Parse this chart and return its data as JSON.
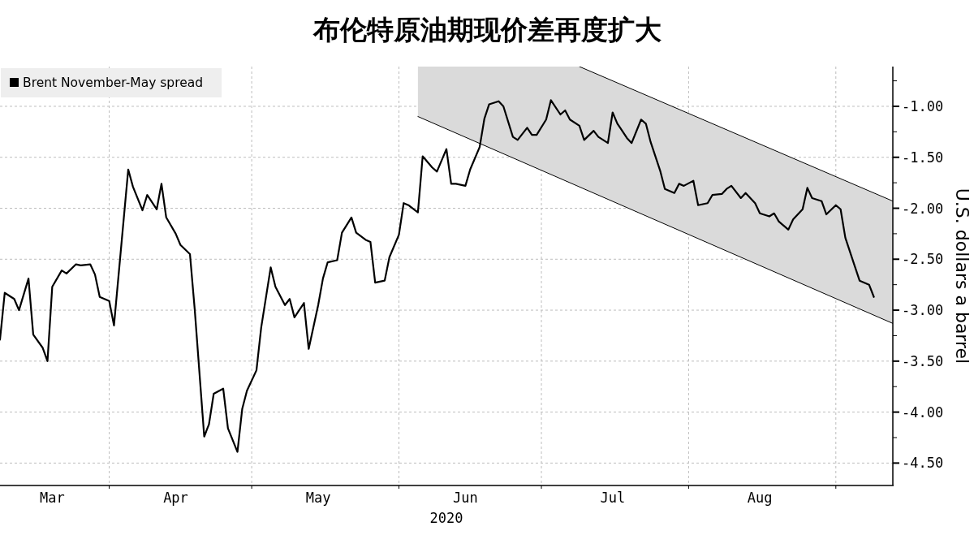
{
  "chart_data": {
    "type": "line",
    "title": "布伦特原油期现价差再度扩大",
    "xlabel": "2020",
    "ylabel": "U.S. dollars a barrel",
    "xlim": [
      "2020-03-09",
      "2020-09-13"
    ],
    "xticks": [
      {
        "value": "2020-04-01",
        "label": null
      },
      {
        "value": "2020-05-01",
        "label": null
      },
      {
        "value": "2020-06-01",
        "label": null
      },
      {
        "value": "2020-07-01",
        "label": null
      },
      {
        "value": "2020-08-01",
        "label": null
      },
      {
        "value": "2020-09-01",
        "label": null
      },
      {
        "value": "2020-03-20",
        "label": "Mar"
      },
      {
        "value": "2020-04-15",
        "label": "Apr"
      },
      {
        "value": "2020-05-15",
        "label": "May"
      },
      {
        "value": "2020-06-15",
        "label": "Jun"
      },
      {
        "value": "2020-07-16",
        "label": "Jul"
      },
      {
        "value": "2020-08-16",
        "label": "Aug"
      }
    ],
    "ylim": [
      -4.72,
      -0.61
    ],
    "yticks": [
      {
        "value": -1,
        "label": "-1.00"
      },
      {
        "value": -1.5,
        "label": "-1.50"
      },
      {
        "value": -2,
        "label": "-2.00"
      },
      {
        "value": -2.5,
        "label": "-2.50"
      },
      {
        "value": -3,
        "label": "-3.00"
      },
      {
        "value": -3.5,
        "label": "-3.50"
      },
      {
        "value": -4,
        "label": "-4.00"
      },
      {
        "value": -4.5,
        "label": "-4.50"
      },
      {
        "value": -0.75,
        "label": null
      },
      {
        "value": -1.25,
        "label": null
      },
      {
        "value": -1.75,
        "label": null
      },
      {
        "value": -2.25,
        "label": null
      },
      {
        "value": -2.75,
        "label": null
      },
      {
        "value": -3.25,
        "label": null
      },
      {
        "value": -3.75,
        "label": null
      },
      {
        "value": -4.25,
        "label": null
      }
    ],
    "grid": true,
    "legend": "top left",
    "series": [
      {
        "color": "#000000",
        "x": [
          "2020-07-09",
          "2020-09-13"
        ],
        "values": [
          -0.61,
          -1.93
        ]
      },
      {
        "color": "#000000",
        "x": [
          "2020-06-05",
          "2020-09-13"
        ],
        "values": [
          -1.1,
          -3.13
        ]
      },
      {
        "name": "Brent November-May spread",
        "color": "#000000",
        "x": [
          "2020-03-09",
          "2020-03-10",
          "2020-03-12",
          "2020-03-13",
          "2020-03-15",
          "2020-03-16",
          "2020-03-18",
          "2020-03-19",
          "2020-03-20",
          "2020-03-22",
          "2020-03-23",
          "2020-03-25",
          "2020-03-26",
          "2020-03-28",
          "2020-03-29",
          "2020-03-30",
          "2020-04-01",
          "2020-04-02",
          "2020-04-05",
          "2020-04-06",
          "2020-04-08",
          "2020-04-09",
          "2020-04-11",
          "2020-04-12",
          "2020-04-13",
          "2020-04-15",
          "2020-04-16",
          "2020-04-18",
          "2020-04-19",
          "2020-04-21",
          "2020-04-22",
          "2020-04-23",
          "2020-04-25",
          "2020-04-26",
          "2020-04-28",
          "2020-04-29",
          "2020-04-30",
          "2020-05-02",
          "2020-05-03",
          "2020-05-05",
          "2020-05-06",
          "2020-05-08",
          "2020-05-09",
          "2020-05-10",
          "2020-05-12",
          "2020-05-13",
          "2020-05-15",
          "2020-05-16",
          "2020-05-17",
          "2020-05-19",
          "2020-05-20",
          "2020-05-22",
          "2020-05-23",
          "2020-05-25",
          "2020-05-26",
          "2020-05-27",
          "2020-05-29",
          "2020-05-30",
          "2020-06-01",
          "2020-06-02",
          "2020-06-03",
          "2020-06-05",
          "2020-06-06",
          "2020-06-08",
          "2020-06-09",
          "2020-06-11",
          "2020-06-12",
          "2020-06-13",
          "2020-06-15",
          "2020-06-16",
          "2020-06-18",
          "2020-06-19",
          "2020-06-20",
          "2020-06-22",
          "2020-06-23",
          "2020-06-25",
          "2020-06-26",
          "2020-06-28",
          "2020-06-29",
          "2020-06-30",
          "2020-07-02",
          "2020-07-03",
          "2020-07-05",
          "2020-07-06",
          "2020-07-07",
          "2020-07-09",
          "2020-07-10",
          "2020-07-12",
          "2020-07-13",
          "2020-07-15",
          "2020-07-16",
          "2020-07-17",
          "2020-07-19",
          "2020-07-20",
          "2020-07-22",
          "2020-07-23",
          "2020-07-24",
          "2020-07-26",
          "2020-07-27",
          "2020-07-29",
          "2020-07-30",
          "2020-07-31",
          "2020-08-02",
          "2020-08-03",
          "2020-08-05",
          "2020-08-06",
          "2020-08-08",
          "2020-08-09",
          "2020-08-10",
          "2020-08-12",
          "2020-08-13",
          "2020-08-15",
          "2020-08-16",
          "2020-08-18",
          "2020-08-19",
          "2020-08-20",
          "2020-08-22",
          "2020-08-23",
          "2020-08-25",
          "2020-08-26",
          "2020-08-27",
          "2020-08-29",
          "2020-08-30",
          "2020-09-01",
          "2020-09-02",
          "2020-09-03",
          "2020-09-05",
          "2020-09-06",
          "2020-09-08",
          "2020-09-09"
        ],
        "values": [
          -3.29,
          -2.83,
          -2.89,
          -3.0,
          -2.69,
          -3.24,
          -3.37,
          -3.5,
          -2.77,
          -2.61,
          -2.64,
          -2.55,
          -2.56,
          -2.55,
          -2.65,
          -2.87,
          -2.91,
          -3.15,
          -1.62,
          -1.79,
          -2.02,
          -1.87,
          -2.01,
          -1.76,
          -2.09,
          -2.25,
          -2.36,
          -2.45,
          -2.99,
          -4.24,
          -4.12,
          -3.82,
          -3.77,
          -4.16,
          -4.39,
          -3.97,
          -3.79,
          -3.59,
          -3.17,
          -2.58,
          -2.77,
          -2.95,
          -2.89,
          -3.07,
          -2.93,
          -3.38,
          -2.95,
          -2.69,
          -2.53,
          -2.51,
          -2.24,
          -2.09,
          -2.24,
          -2.31,
          -2.33,
          -2.73,
          -2.71,
          -2.48,
          -2.26,
          -1.95,
          -1.97,
          -2.04,
          -1.49,
          -1.6,
          -1.64,
          -1.42,
          -1.76,
          -1.76,
          -1.78,
          -1.62,
          -1.4,
          -1.12,
          -0.98,
          -0.95,
          -1.0,
          -1.3,
          -1.33,
          -1.21,
          -1.28,
          -1.28,
          -1.13,
          -0.94,
          -1.08,
          -1.04,
          -1.13,
          -1.19,
          -1.33,
          -1.24,
          -1.3,
          -1.36,
          -1.06,
          -1.17,
          -1.31,
          -1.36,
          -1.13,
          -1.17,
          -1.35,
          -1.63,
          -1.81,
          -1.85,
          -1.76,
          -1.78,
          -1.73,
          -1.97,
          -1.95,
          -1.87,
          -1.86,
          -1.81,
          -1.78,
          -1.9,
          -1.85,
          -1.95,
          -2.05,
          -2.08,
          -2.05,
          -2.13,
          -2.21,
          -2.11,
          -2.01,
          -1.8,
          -1.9,
          -1.93,
          -2.06,
          -1.97,
          -2.01,
          -2.29,
          -2.57,
          -2.71,
          -2.75,
          -2.87
        ]
      }
    ]
  }
}
